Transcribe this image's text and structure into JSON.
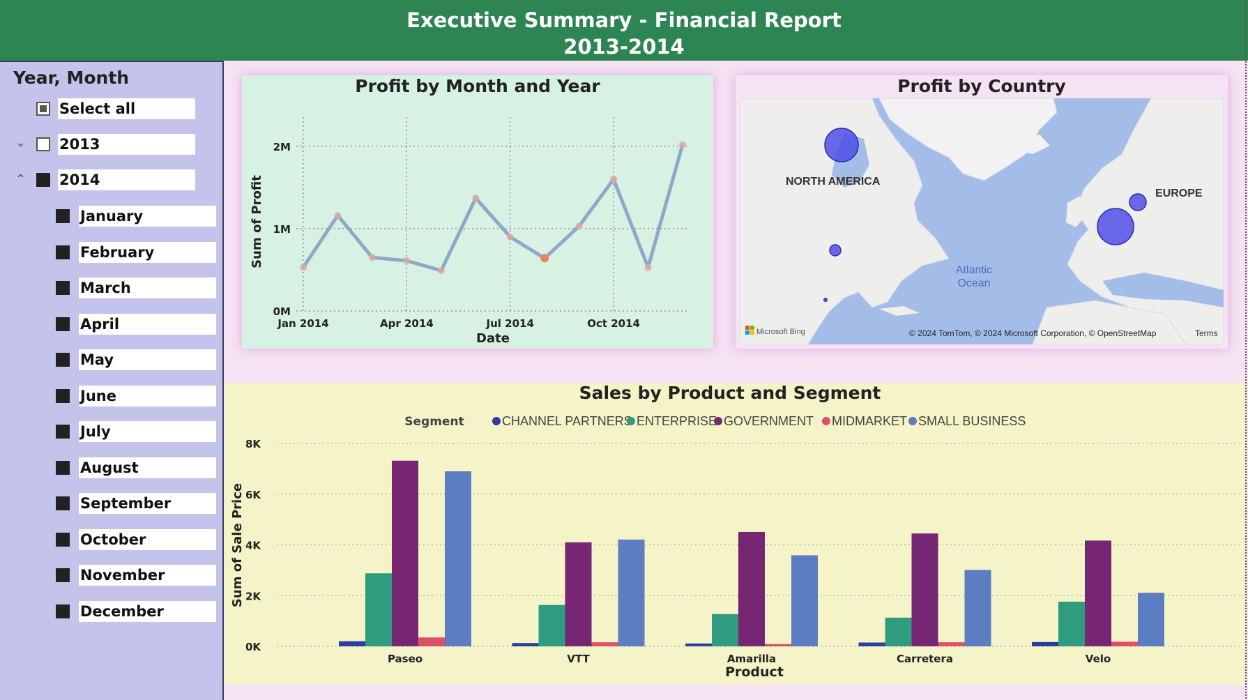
{
  "header": {
    "title_line1": "Executive Summary - Financial Report",
    "title_line2": "2013-2014"
  },
  "slicer": {
    "title": "Year, Month",
    "select_all": "Select all",
    "years": [
      {
        "label": "2013",
        "state": "unchecked",
        "expanded": false
      },
      {
        "label": "2014",
        "state": "checked",
        "expanded": true
      }
    ],
    "months": [
      "January",
      "February",
      "March",
      "April",
      "May",
      "June",
      "July",
      "August",
      "September",
      "October",
      "November",
      "December"
    ]
  },
  "profit_by_month": {
    "title": "Profit by Month and Year",
    "chart_data": {
      "type": "line",
      "title": "Profit by Month and Year",
      "xlabel": "Date",
      "ylabel": "Sum of Profit",
      "x": [
        "2014-01",
        "2014-02",
        "2014-03",
        "2014-04",
        "2014-05",
        "2014-06",
        "2014-07",
        "2014-08",
        "2014-09",
        "2014-10",
        "2014-11",
        "2014-12"
      ],
      "x_ticks": [
        "Jan 2014",
        "Apr 2014",
        "Jul 2014",
        "Oct 2014"
      ],
      "y_ticks": [
        "0M",
        "1M",
        "2M"
      ],
      "ylim": [
        0,
        2100000
      ],
      "series": [
        {
          "values": [
            530000,
            1160000,
            650000,
            610000,
            490000,
            1370000,
            900000,
            640000,
            1030000,
            1600000,
            530000,
            2020000
          ]
        }
      ],
      "highlight_index": 7,
      "line_color": "#8fa8c8",
      "highlight_color": "#f08060",
      "grid": true
    }
  },
  "profit_by_country": {
    "title": "Profit by Country",
    "labels": {
      "north_america": "NORTH AMERICA",
      "europe": "EUROPE",
      "ocean": "Atlantic\nOcean"
    },
    "ocean_line1": "Atlantic",
    "ocean_line2": "Ocean",
    "bing": "Microsoft Bing",
    "attribution": "© 2024 TomTom, © 2024 Microsoft Corporation, © OpenStreetMap",
    "terms": "Terms",
    "bubble_color": "#4f4fe8"
  },
  "sales": {
    "title": "Sales by Product and Segment",
    "chart_data": {
      "type": "bar",
      "title": "Sales by Product and Segment",
      "xlabel": "Product",
      "ylabel": "Sum of Sale Price",
      "legend_title": "Segment",
      "legend_position": "top",
      "categories": [
        "Paseo",
        "VTT",
        "Amarilla",
        "Carretera",
        "Velo"
      ],
      "y_ticks": [
        "0K",
        "2K",
        "4K",
        "6K",
        "8K"
      ],
      "ylim": [
        0,
        8000
      ],
      "grid": true,
      "series": [
        {
          "name": "CHANNEL PARTNERS",
          "color": "#2a3e9e",
          "values": [
            200,
            130,
            110,
            150,
            170
          ]
        },
        {
          "name": "ENTERPRISE",
          "color": "#2f9c7f",
          "values": [
            2880,
            1630,
            1270,
            1130,
            1760
          ]
        },
        {
          "name": "GOVERNMENT",
          "color": "#762673",
          "values": [
            7320,
            4100,
            4510,
            4450,
            4170
          ]
        },
        {
          "name": "MIDMARKET",
          "color": "#de5068",
          "values": [
            350,
            160,
            90,
            160,
            180
          ]
        },
        {
          "name": "SMALL BUSINESS",
          "color": "#5b7dc1",
          "values": [
            6900,
            4210,
            3590,
            3010,
            2110
          ]
        }
      ]
    }
  }
}
